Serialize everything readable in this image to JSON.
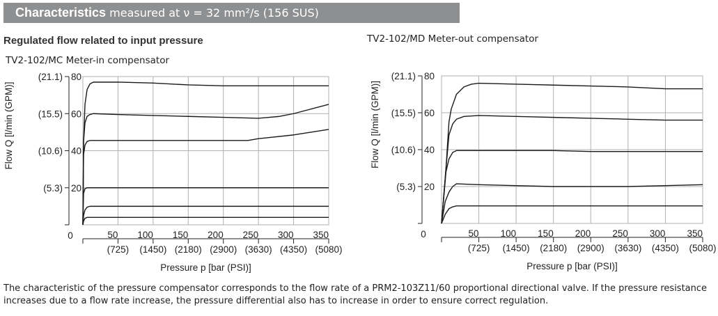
{
  "header": {
    "title": "Characteristics",
    "subtitle": "measured at ν = 32 mm²/s (156 SUS)"
  },
  "section_title": "Regulated flow related to input pressure",
  "footer": "The characteristic of the pressure compensator corresponds to the flow rate of a PRM2-103Z11/60 proportional directional valve. If the pressure resistance increases due to a flow rate increase, the pressure differential also has to increase in order to ensure correct regulation.",
  "chart_data": [
    {
      "type": "line",
      "title": "TV2-102/MC Meter-in compensator",
      "xlabel": "Pressure p [bar (PSI)]",
      "ylabel": "Flow Q [l/min (GPM)]",
      "xlim": [
        0,
        350
      ],
      "ylim": [
        0,
        80
      ],
      "grid": true,
      "xticks": [
        50,
        100,
        150,
        200,
        250,
        300,
        350
      ],
      "xticks_secondary": [
        "(725)",
        "(1450)",
        "(2180)",
        "(2900)",
        "(3630)",
        "(4350)",
        "(5080)"
      ],
      "yticks": [
        20,
        40,
        60,
        80
      ],
      "yticks_secondary": [
        "(5.3)",
        "(10.6)",
        "(15.5)",
        "(21.1)"
      ],
      "zero_label": "0",
      "series": [
        {
          "x": [
            0,
            1,
            3,
            6,
            10,
            15,
            50,
            100,
            150,
            200,
            250,
            300,
            350
          ],
          "y": [
            0,
            45,
            65,
            73,
            76,
            77,
            77,
            76.5,
            75.5,
            75,
            75,
            75,
            75
          ]
        },
        {
          "x": [
            0,
            1,
            3,
            6,
            10,
            15,
            50,
            100,
            150,
            200,
            250,
            280,
            300,
            350
          ],
          "y": [
            0,
            45,
            55,
            58.5,
            59.5,
            60,
            59.5,
            59,
            58.5,
            58,
            57.5,
            58.5,
            60,
            65
          ]
        },
        {
          "x": [
            0,
            1,
            3,
            6,
            10,
            50,
            100,
            150,
            200,
            235,
            250,
            300,
            350
          ],
          "y": [
            0,
            38,
            43,
            45,
            45.5,
            45.5,
            45.5,
            45.5,
            45.5,
            45.5,
            46.5,
            48.5,
            51.5
          ]
        },
        {
          "x": [
            0,
            1,
            3,
            6,
            350
          ],
          "y": [
            0,
            17,
            19.5,
            20,
            20
          ]
        },
        {
          "x": [
            0,
            1,
            3,
            6,
            10,
            350
          ],
          "y": [
            0,
            5,
            8,
            9.5,
            10,
            10
          ]
        },
        {
          "x": [
            0,
            1,
            3,
            6,
            10,
            350
          ],
          "y": [
            0,
            2,
            3.5,
            4,
            4,
            4
          ]
        }
      ]
    },
    {
      "type": "line",
      "title": "TV2-102/MD Meter-out compensator",
      "xlabel": "Pressure p [bar (PSI)]",
      "ylabel": "Flow Q [l/min (GPM)]",
      "xlim": [
        0,
        350
      ],
      "ylim": [
        0,
        80
      ],
      "grid": true,
      "xticks": [
        50,
        100,
        150,
        200,
        250,
        300,
        350
      ],
      "xticks_secondary": [
        "(725)",
        "(1450)",
        "(2180)",
        "(2900)",
        "(3630)",
        "(4350)",
        "(5080)"
      ],
      "yticks": [
        20,
        40,
        60,
        80
      ],
      "yticks_secondary": [
        "(5.3)",
        "(10.6)",
        "(15.5)",
        "(21.1)"
      ],
      "zero_label": "0",
      "series": [
        {
          "x": [
            0,
            6,
            10,
            13,
            20,
            30,
            40,
            50,
            100,
            150,
            200,
            250,
            300,
            350
          ],
          "y": [
            0,
            30,
            55,
            62,
            70,
            74,
            75.5,
            76,
            75.5,
            75,
            74.5,
            74,
            73,
            73
          ]
        },
        {
          "x": [
            0,
            6,
            10,
            15,
            20,
            30,
            50,
            100,
            150,
            200,
            250,
            300,
            350
          ],
          "y": [
            0,
            30,
            48,
            54,
            56.5,
            58,
            58.5,
            58,
            57.5,
            57,
            56.5,
            56,
            56
          ]
        },
        {
          "x": [
            0,
            6,
            10,
            15,
            20,
            50,
            100,
            150,
            200,
            250,
            300,
            350
          ],
          "y": [
            0,
            28,
            35,
            38.5,
            39.5,
            39.5,
            39.5,
            39.5,
            39,
            39,
            39,
            39
          ]
        },
        {
          "x": [
            0,
            5,
            10,
            15,
            20,
            50,
            100,
            150,
            200,
            250,
            300,
            350
          ],
          "y": [
            0,
            12,
            17,
            20,
            21.5,
            21,
            20.5,
            20,
            20,
            20,
            20.5,
            21
          ]
        },
        {
          "x": [
            0,
            5,
            10,
            15,
            20,
            350
          ],
          "y": [
            0,
            5,
            8,
            9,
            9.5,
            9.5
          ]
        }
      ]
    }
  ],
  "colors": {
    "header_bg": "#8e8f91",
    "grid": "#b0b0b0",
    "line": "#1a1a1a"
  }
}
